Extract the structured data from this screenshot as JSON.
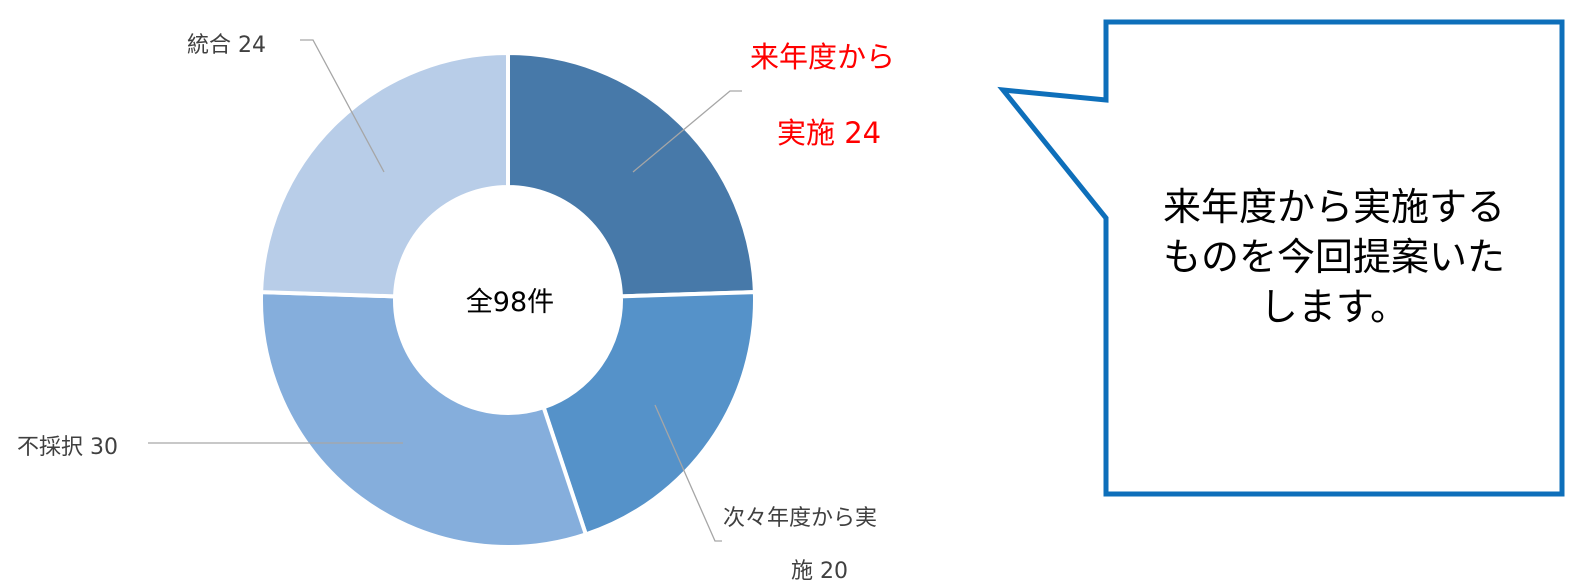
{
  "chart_data": {
    "type": "pie",
    "variant": "donut",
    "center_label": "全98件",
    "series": [
      {
        "values": [
          24,
          20,
          30,
          24
        ]
      }
    ],
    "slices": [
      {
        "value": 24,
        "color": "#4779a9",
        "label": [
          "来年度から",
          "実施 24"
        ],
        "highlight": true
      },
      {
        "value": 20,
        "color": "#5592c9",
        "label": [
          "次々年度から実",
          "施 20"
        ],
        "highlight": false
      },
      {
        "value": 30,
        "color": "#85aedc",
        "label": [
          "不採択 30"
        ],
        "highlight": false
      },
      {
        "value": 24,
        "color": "#b8cde8",
        "label": [
          "統合 24"
        ],
        "highlight": false
      }
    ],
    "legend": "none"
  },
  "callout": {
    "lines": [
      "来年度から実施する",
      "ものを今回提案いた",
      "します。"
    ],
    "border_color": "#0e6fba"
  },
  "colors": {
    "highlight_text": "#ff0000",
    "leader_line": "#a6a6a6",
    "label_text": "#404040"
  }
}
